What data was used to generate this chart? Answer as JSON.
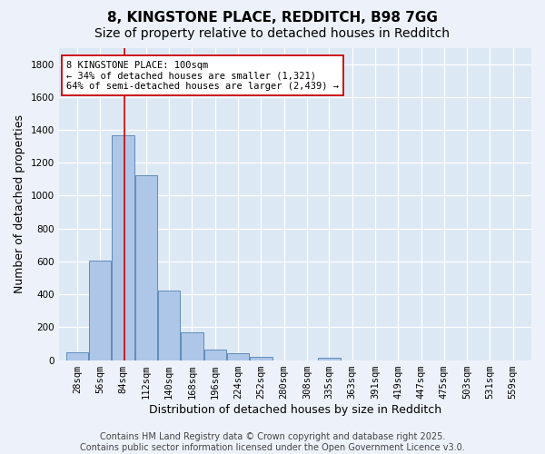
{
  "title1": "8, KINGSTONE PLACE, REDDITCH, B98 7GG",
  "title2": "Size of property relative to detached houses in Redditch",
  "xlabel": "Distribution of detached houses by size in Redditch",
  "ylabel": "Number of detached properties",
  "bar_color": "#aec6e8",
  "bar_edge_color": "#5080b0",
  "background_color": "#dde8f5",
  "grid_color": "#ffffff",
  "vline_x": 100,
  "vline_color": "#cc0000",
  "annotation_text": "8 KINGSTONE PLACE: 100sqm\n← 34% of detached houses are smaller (1,321)\n64% of semi-detached houses are larger (2,439) →",
  "annotation_box_color": "#ffffff",
  "annotation_box_edge": "#cc0000",
  "bin_edges": [
    28,
    56,
    84,
    112,
    140,
    168,
    196,
    224,
    252,
    280,
    308,
    335,
    363,
    391,
    419,
    447,
    475,
    503,
    531,
    559,
    587
  ],
  "bin_labels": [
    "28sqm",
    "56sqm",
    "84sqm",
    "112sqm",
    "140sqm",
    "168sqm",
    "196sqm",
    "224sqm",
    "252sqm",
    "280sqm",
    "308sqm",
    "335sqm",
    "363sqm",
    "391sqm",
    "419sqm",
    "447sqm",
    "475sqm",
    "503sqm",
    "531sqm",
    "559sqm"
  ],
  "bar_heights": [
    50,
    605,
    1365,
    1125,
    425,
    170,
    65,
    40,
    20,
    0,
    0,
    15,
    0,
    0,
    0,
    0,
    0,
    0,
    0,
    0
  ],
  "ylim": [
    0,
    1900
  ],
  "yticks": [
    0,
    200,
    400,
    600,
    800,
    1000,
    1200,
    1400,
    1600,
    1800
  ],
  "footer_text": "Contains HM Land Registry data © Crown copyright and database right 2025.\nContains public sector information licensed under the Open Government Licence v3.0.",
  "title_fontsize": 11,
  "subtitle_fontsize": 10,
  "axis_label_fontsize": 9,
  "tick_fontsize": 7.5,
  "footer_fontsize": 7
}
